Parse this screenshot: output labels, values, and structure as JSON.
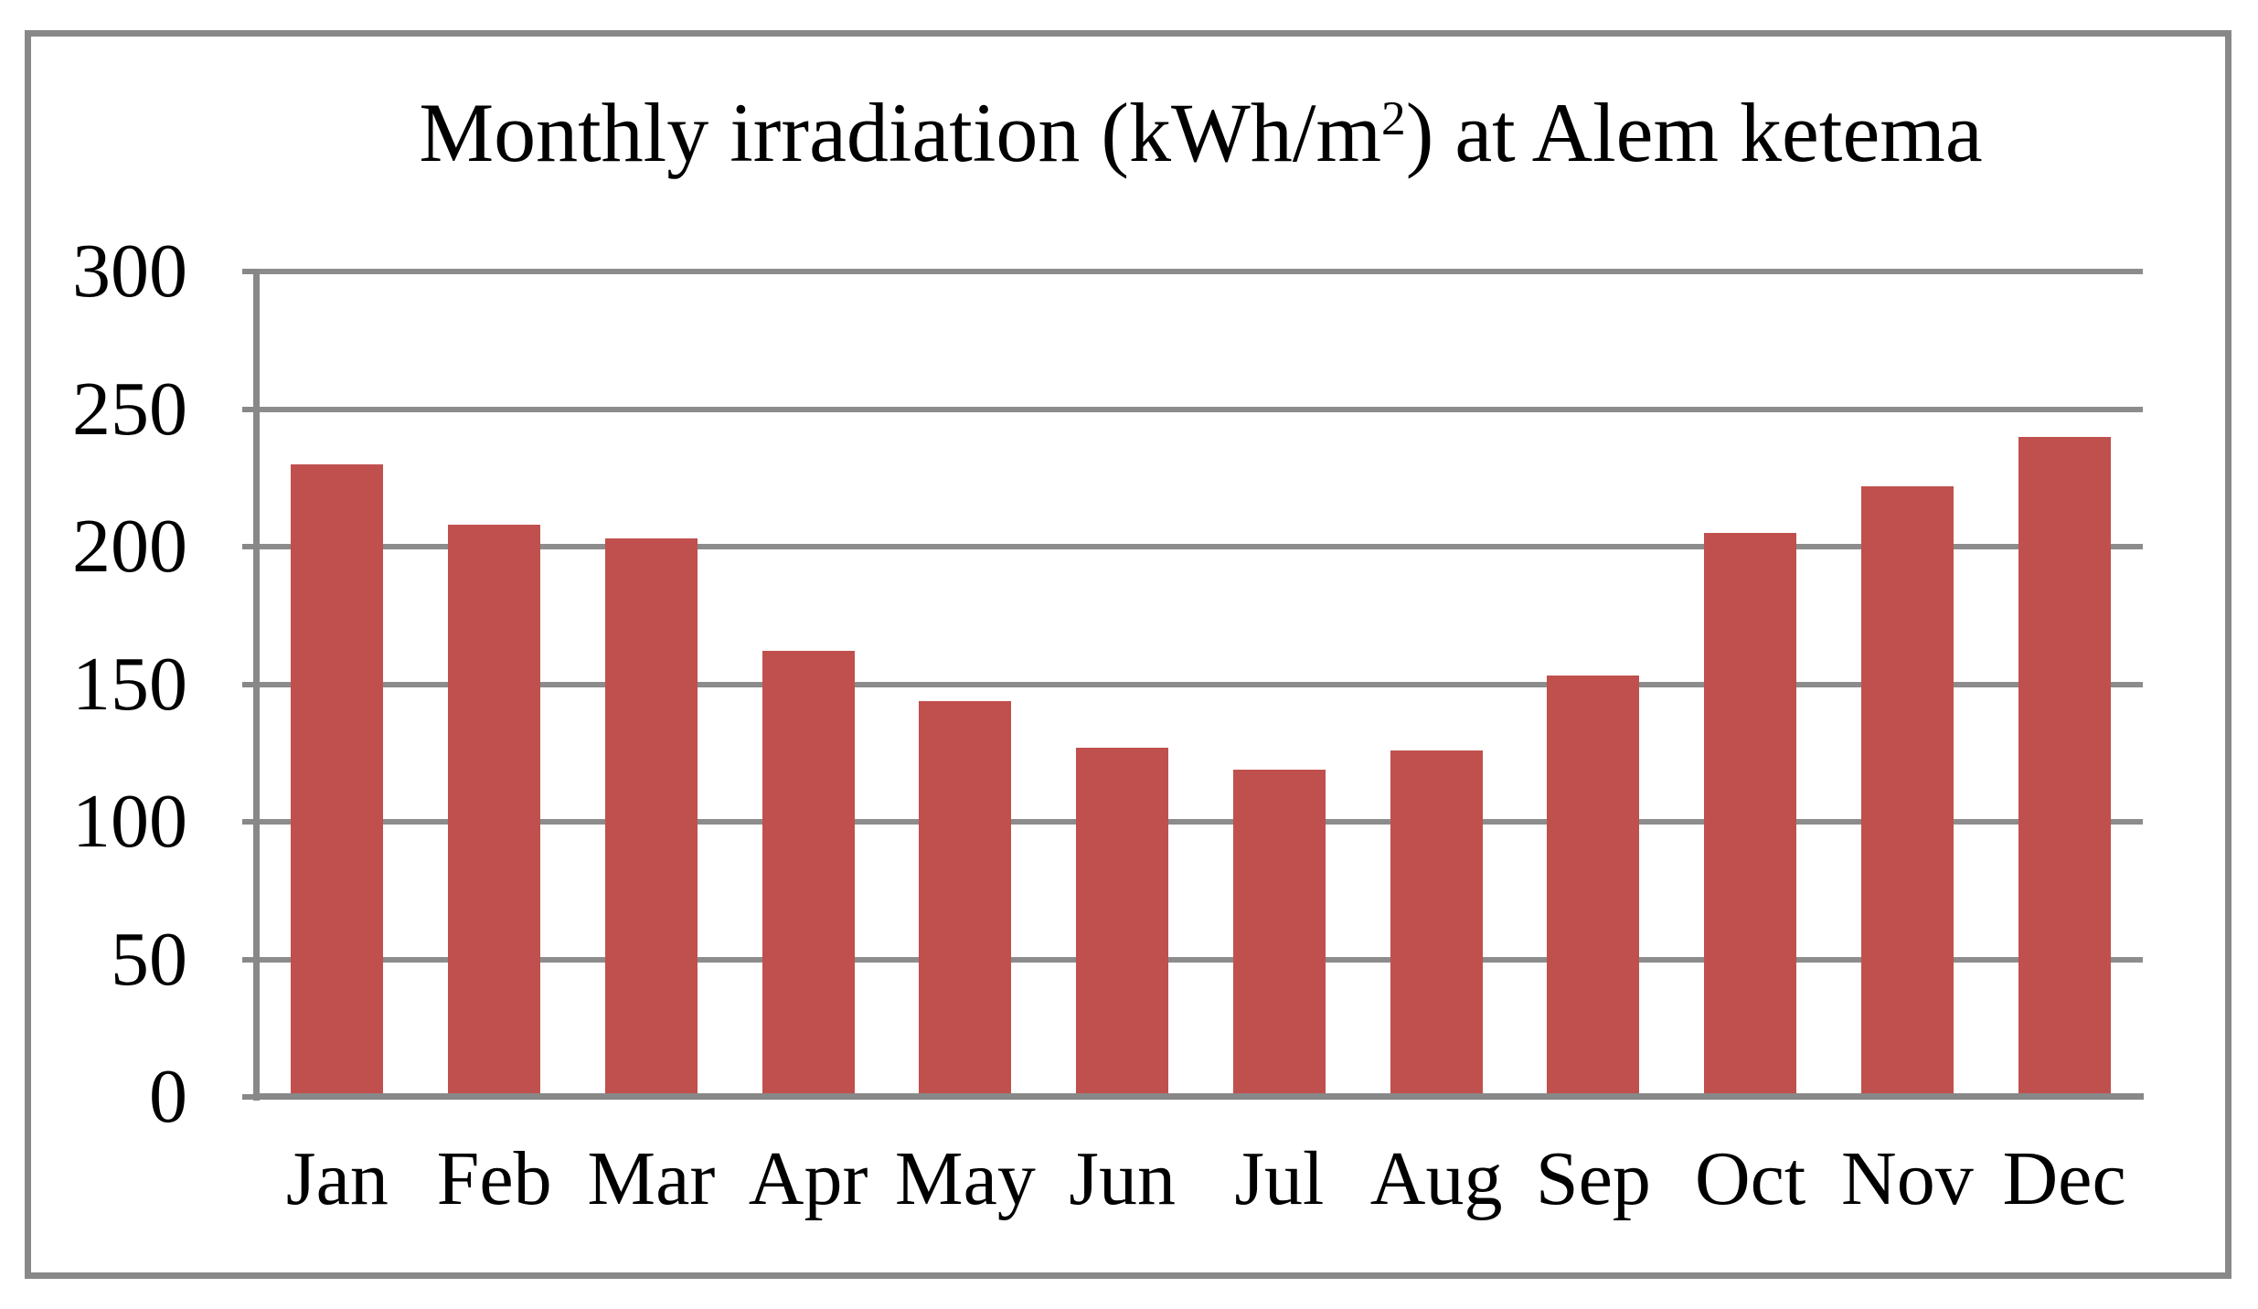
{
  "figure": {
    "title_prefix": "Monthly irradiation (kWh/m",
    "title_superscript": "2",
    "title_suffix": ") at Alem ketema"
  },
  "chart_data": {
    "type": "bar",
    "title": "Monthly irradiation (kWh/m2) at Alem ketema",
    "categories": [
      "Jan",
      "Feb",
      "Mar",
      "Apr",
      "May",
      "Jun",
      "Jul",
      "Aug",
      "Sep",
      "Oct",
      "Nov",
      "Dec"
    ],
    "values": [
      230,
      208,
      203,
      162,
      144,
      127,
      119,
      126,
      153,
      205,
      222,
      240
    ],
    "series_name": "Monthly irradiation",
    "xlabel": "",
    "ylabel": "",
    "ylim": [
      0,
      300
    ],
    "yticks": [
      0,
      50,
      100,
      150,
      200,
      250,
      300
    ],
    "grid": "horizontal",
    "legend_position": "none",
    "bar_color": "#C0504D",
    "gridline_color": "#8C8C8C",
    "axis_color": "#888888",
    "border_color": "#888888",
    "background_color": "#FFFFFF"
  }
}
